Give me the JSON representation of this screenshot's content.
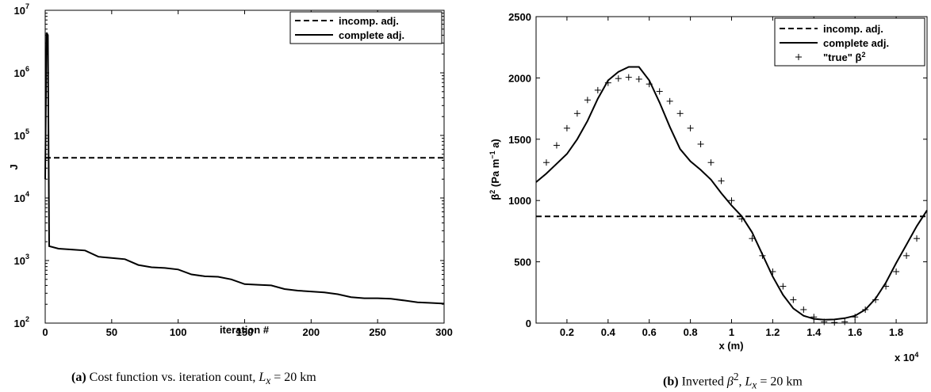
{
  "chart_data": [
    {
      "type": "line",
      "ylog": true,
      "xlim": [
        0,
        300
      ],
      "ylim": [
        100,
        10000000
      ],
      "xlabel": "iteration #",
      "ylabel": "J",
      "xticks": [
        0,
        50,
        100,
        150,
        200,
        250,
        300
      ],
      "yticks": [
        100,
        1000,
        10000,
        100000,
        1000000,
        10000000
      ],
      "ytick_labels": [
        {
          "base": "10",
          "exp": "2"
        },
        {
          "base": "10",
          "exp": "3"
        },
        {
          "base": "10",
          "exp": "4"
        },
        {
          "base": "10",
          "exp": "5"
        },
        {
          "base": "10",
          "exp": "6"
        },
        {
          "base": "10",
          "exp": "7"
        }
      ],
      "legend_position": "top-right",
      "series": [
        {
          "name": "incomp. adj.",
          "style": "dashed",
          "x": [
            0,
            300
          ],
          "y": [
            44000,
            44000
          ]
        },
        {
          "name": "complete adj.",
          "style": "solid",
          "x": [
            0,
            1,
            2,
            3,
            10,
            20,
            30,
            40,
            50,
            60,
            70,
            80,
            90,
            100,
            110,
            120,
            130,
            140,
            150,
            160,
            170,
            180,
            190,
            200,
            210,
            220,
            230,
            240,
            250,
            260,
            270,
            280,
            290,
            300
          ],
          "y": [
            20000,
            4400000,
            4000000,
            1700,
            1550,
            1500,
            1450,
            1150,
            1100,
            1050,
            850,
            780,
            760,
            720,
            600,
            560,
            550,
            500,
            420,
            410,
            400,
            350,
            330,
            320,
            310,
            290,
            260,
            250,
            250,
            245,
            230,
            215,
            210,
            205
          ]
        }
      ],
      "caption": {
        "label": "(a)",
        "text": " Cost function vs. iteration count, ",
        "sym": "L",
        "sub": "x",
        "rest": " = 20 km"
      }
    },
    {
      "type": "line",
      "xlim": [
        500,
        19500
      ],
      "ylim": [
        0,
        2500
      ],
      "xlabel": "x (m)",
      "ylabel_parts": {
        "pre": "β",
        "sup1": "2",
        "mid": " (Pa m",
        "sup2": "−1",
        "post": " a)"
      },
      "x_exponent": {
        "pre": "x 10",
        "exp": "4"
      },
      "xticks": [
        2000,
        4000,
        6000,
        8000,
        10000,
        12000,
        14000,
        16000,
        18000
      ],
      "xtick_labels": [
        "0.2",
        "0.4",
        "0.6",
        "0.8",
        "1",
        "1.2",
        "1.4",
        "1.6",
        "1.8"
      ],
      "yticks": [
        0,
        500,
        1000,
        1500,
        2000,
        2500
      ],
      "legend_position": "top-right",
      "series": [
        {
          "name": "incomp. adj.",
          "style": "dashed",
          "x": [
            500,
            19500
          ],
          "y": [
            870,
            870
          ]
        },
        {
          "name": "complete adj.",
          "style": "solid",
          "x": [
            500,
            1000,
            1500,
            2000,
            2500,
            3000,
            3500,
            4000,
            4500,
            5000,
            5500,
            6000,
            6500,
            7000,
            7500,
            8000,
            8500,
            9000,
            9500,
            10000,
            10500,
            11000,
            11500,
            12000,
            12500,
            13000,
            13500,
            14000,
            14500,
            15000,
            15500,
            16000,
            16500,
            17000,
            17500,
            18000,
            18500,
            19000,
            19500
          ],
          "y": [
            1150,
            1220,
            1300,
            1380,
            1500,
            1650,
            1830,
            1980,
            2050,
            2090,
            2090,
            1980,
            1800,
            1600,
            1420,
            1320,
            1250,
            1170,
            1060,
            960,
            870,
            740,
            560,
            380,
            230,
            120,
            60,
            35,
            28,
            30,
            40,
            60,
            110,
            200,
            330,
            490,
            640,
            790,
            920
          ]
        },
        {
          "name": "\"true\" β",
          "name_sup": "2",
          "style": "plus",
          "x": [
            1000,
            1500,
            2000,
            2500,
            3000,
            3500,
            4000,
            4500,
            5000,
            5500,
            6000,
            6500,
            7000,
            7500,
            8000,
            8500,
            9000,
            9500,
            10000,
            10500,
            11000,
            11500,
            12000,
            12500,
            13000,
            13500,
            14000,
            14500,
            15000,
            15500,
            16000,
            16500,
            17000,
            17500,
            18000,
            18500,
            19000
          ],
          "y": [
            1310,
            1450,
            1590,
            1710,
            1820,
            1900,
            1960,
            1995,
            2005,
            1990,
            1950,
            1890,
            1810,
            1710,
            1590,
            1460,
            1310,
            1160,
            1000,
            850,
            690,
            550,
            420,
            300,
            190,
            110,
            50,
            10,
            5,
            10,
            50,
            110,
            190,
            300,
            420,
            550,
            690
          ]
        }
      ],
      "caption": {
        "label": "(b)",
        "text": " Inverted ",
        "beta": "β",
        "beta_sup": "2",
        "comma": ", ",
        "sym": "L",
        "sub": "x",
        "rest": " = 20 km"
      }
    }
  ]
}
